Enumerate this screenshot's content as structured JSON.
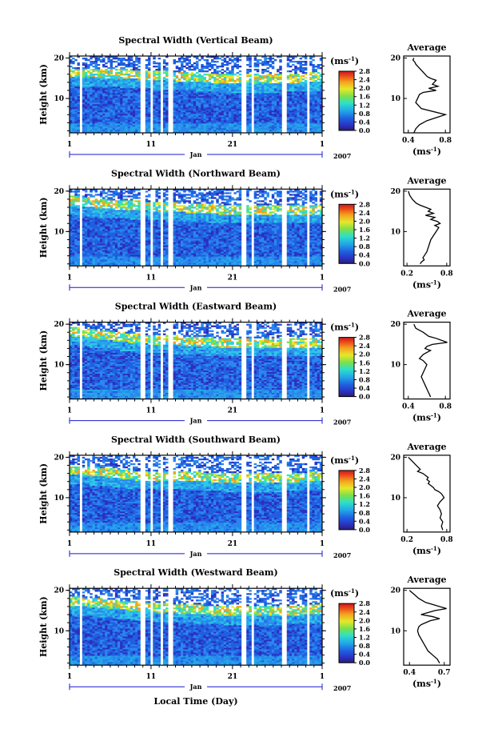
{
  "figure": {
    "xlabel": "Local Time (Day)",
    "month": "Jan",
    "year": "2007",
    "ylabel": "Height (km)",
    "unit": "(ms",
    "unit_sup": "-1",
    "unit_close": ")",
    "avg_title": "Average",
    "x_ticks": [
      "1",
      "11",
      "21",
      "1"
    ],
    "y_ticks": [
      "20",
      "10"
    ],
    "colorbar_ticks": [
      "0.0",
      "0.4",
      "0.8",
      "1.2",
      "1.6",
      "2.0",
      "2.4",
      "2.8"
    ]
  },
  "panels": [
    {
      "title": "Spectral Width (Vertical Beam)",
      "avg_ticks": [
        "0.4",
        "0.8"
      ]
    },
    {
      "title": "Spectral Width (Northward Beam)",
      "avg_ticks": [
        "0.2",
        "0.8"
      ]
    },
    {
      "title": "Spectral Width (Eastward Beam)",
      "avg_ticks": [
        "0.4",
        "0.8"
      ]
    },
    {
      "title": "Spectral Width (Southward Beam)",
      "avg_ticks": [
        "0.2",
        "0.8"
      ]
    },
    {
      "title": "Spectral Width (Westward Beam)",
      "avg_ticks": [
        "0.4",
        "0.7"
      ]
    }
  ],
  "chart_data": [
    {
      "type": "heatmap",
      "title": "Spectral Width (Vertical Beam)",
      "xlabel": "",
      "ylabel": "Height (km)",
      "x_range": [
        1,
        32
      ],
      "y_range": [
        1.5,
        20.5
      ],
      "color_range": [
        0.0,
        2.8
      ],
      "colorbar_label": "(ms-1)",
      "data_gaps_day": [
        [
          1.2,
          1.35
        ],
        [
          2.3,
          2.55
        ],
        [
          9.6,
          10.4
        ],
        [
          11.0,
          11.3
        ],
        [
          12.2,
          12.5
        ],
        [
          13.0,
          13.6
        ],
        [
          22.2,
          22.7
        ],
        [
          23.4,
          23.6
        ],
        [
          27.0,
          27.6
        ],
        [
          30.2,
          30.5
        ]
      ],
      "tropopause_km": [
        [
          1,
          16
        ],
        [
          5,
          16
        ],
        [
          10,
          15.5
        ],
        [
          16,
          15
        ],
        [
          21,
          14.5
        ],
        [
          26,
          14.5
        ],
        [
          32,
          15
        ]
      ]
    },
    {
      "type": "line",
      "title": "Average",
      "xlabel": "(ms-1)",
      "ylabel": "",
      "xlim": [
        0.35,
        0.85
      ],
      "ylim": [
        1.5,
        20.5
      ],
      "x": [
        0.46,
        0.45,
        0.47,
        0.48,
        0.5,
        0.52,
        0.54,
        0.56,
        0.58,
        0.6,
        0.62,
        0.66,
        0.7,
        0.66,
        0.72,
        0.62,
        0.7,
        0.56,
        0.52,
        0.5,
        0.48,
        0.54,
        0.8,
        0.6,
        0.52,
        0.48,
        0.46
      ],
      "y": [
        20.0,
        19.5,
        19.0,
        18.5,
        18.0,
        17.5,
        17.0,
        16.5,
        16.0,
        15.5,
        15.2,
        14.8,
        14.5,
        13.5,
        13.0,
        12.5,
        12.0,
        11.5,
        11.0,
        10.0,
        9.0,
        7.5,
        6.0,
        4.5,
        3.5,
        2.5,
        1.5
      ]
    },
    {
      "type": "heatmap",
      "title": "Spectral Width (Northward Beam)",
      "xlabel": "",
      "ylabel": "Height (km)",
      "x_range": [
        1,
        32
      ],
      "y_range": [
        1.5,
        20.5
      ],
      "color_range": [
        0.0,
        2.8
      ],
      "colorbar_label": "(ms-1)",
      "data_gaps_day": [
        [
          2.3,
          2.55
        ],
        [
          9.6,
          10.4
        ],
        [
          11.0,
          11.3
        ],
        [
          12.2,
          12.5
        ],
        [
          13.0,
          13.6
        ],
        [
          22.2,
          22.7
        ],
        [
          23.4,
          23.6
        ],
        [
          27.0,
          27.6
        ],
        [
          30.2,
          30.5
        ]
      ],
      "tropopause_km": [
        [
          1,
          17.5
        ],
        [
          5,
          16.5
        ],
        [
          10,
          16
        ],
        [
          16,
          15.5
        ],
        [
          21,
          15
        ],
        [
          26,
          15
        ],
        [
          32,
          15
        ]
      ]
    },
    {
      "type": "line",
      "title": "Average",
      "xlabel": "(ms-1)",
      "ylabel": "",
      "xlim": [
        0.15,
        0.85
      ],
      "ylim": [
        1.5,
        20.5
      ],
      "x": [
        0.22,
        0.24,
        0.28,
        0.34,
        0.4,
        0.48,
        0.56,
        0.52,
        0.6,
        0.48,
        0.62,
        0.56,
        0.66,
        0.7,
        0.62,
        0.68,
        0.64,
        0.6,
        0.56,
        0.54,
        0.52,
        0.5,
        0.46,
        0.44,
        0.46,
        0.42,
        0.4
      ],
      "y": [
        20.0,
        19.0,
        18.0,
        17.0,
        16.5,
        16.0,
        15.5,
        15.0,
        14.5,
        14.0,
        13.5,
        13.0,
        12.5,
        12.0,
        11.5,
        11.0,
        10.0,
        9.0,
        8.0,
        7.0,
        6.0,
        5.0,
        4.0,
        3.5,
        3.0,
        2.5,
        2.0
      ]
    },
    {
      "type": "heatmap",
      "title": "Spectral Width (Eastward Beam)",
      "xlabel": "",
      "ylabel": "Height (km)",
      "x_range": [
        1,
        32
      ],
      "y_range": [
        1.5,
        20.5
      ],
      "color_range": [
        0.0,
        2.8
      ],
      "colorbar_label": "(ms-1)",
      "data_gaps_day": [
        [
          2.3,
          2.55
        ],
        [
          9.6,
          10.4
        ],
        [
          11.0,
          11.3
        ],
        [
          12.2,
          12.5
        ],
        [
          13.0,
          13.6
        ],
        [
          22.2,
          22.7
        ],
        [
          23.4,
          23.6
        ],
        [
          27.0,
          27.6
        ],
        [
          30.2,
          30.5
        ]
      ],
      "tropopause_km": [
        [
          1,
          18
        ],
        [
          5,
          17
        ],
        [
          10,
          16
        ],
        [
          16,
          15.5
        ],
        [
          21,
          15
        ],
        [
          26,
          15
        ],
        [
          32,
          15
        ]
      ]
    },
    {
      "type": "line",
      "title": "Average",
      "xlabel": "(ms-1)",
      "ylabel": "",
      "xlim": [
        0.35,
        0.85
      ],
      "ylim": [
        1.5,
        20.5
      ],
      "x": [
        0.46,
        0.48,
        0.52,
        0.56,
        0.62,
        0.7,
        0.76,
        0.82,
        0.66,
        0.6,
        0.58,
        0.64,
        0.6,
        0.56,
        0.54,
        0.52,
        0.56,
        0.6,
        0.58,
        0.56,
        0.54,
        0.56,
        0.58,
        0.6,
        0.62,
        0.64
      ],
      "y": [
        20.0,
        19.0,
        18.5,
        18.0,
        17.0,
        16.5,
        16.0,
        15.5,
        15.0,
        14.5,
        14.0,
        13.5,
        13.0,
        12.5,
        12.0,
        11.5,
        11.0,
        10.0,
        9.0,
        8.0,
        7.0,
        6.0,
        5.0,
        4.0,
        3.0,
        2.0
      ]
    },
    {
      "type": "heatmap",
      "title": "Spectral Width (Southward Beam)",
      "xlabel": "",
      "ylabel": "Height (km)",
      "x_range": [
        1,
        32
      ],
      "y_range": [
        1.5,
        20.5
      ],
      "color_range": [
        0.0,
        2.8
      ],
      "colorbar_label": "(ms-1)",
      "data_gaps_day": [
        [
          2.3,
          2.55
        ],
        [
          9.6,
          10.4
        ],
        [
          11.0,
          11.3
        ],
        [
          12.2,
          12.5
        ],
        [
          13.0,
          13.6
        ],
        [
          22.2,
          22.7
        ],
        [
          23.4,
          23.6
        ],
        [
          27.0,
          27.6
        ],
        [
          30.2,
          30.5
        ]
      ],
      "tropopause_km": [
        [
          1,
          16.5
        ],
        [
          5,
          16
        ],
        [
          10,
          15
        ],
        [
          16,
          15
        ],
        [
          21,
          14.5
        ],
        [
          26,
          14.5
        ],
        [
          32,
          15
        ]
      ]
    },
    {
      "type": "line",
      "title": "Average",
      "xlabel": "(ms-1)",
      "ylabel": "",
      "xlim": [
        0.15,
        0.85
      ],
      "ylim": [
        1.5,
        20.5
      ],
      "x": [
        0.22,
        0.28,
        0.34,
        0.4,
        0.36,
        0.44,
        0.48,
        0.52,
        0.5,
        0.54,
        0.52,
        0.56,
        0.6,
        0.62,
        0.68,
        0.72,
        0.76,
        0.7,
        0.66,
        0.7,
        0.72,
        0.7,
        0.74,
        0.72,
        0.74
      ],
      "y": [
        20.0,
        19.0,
        18.0,
        17.0,
        16.5,
        16.0,
        15.5,
        15.0,
        14.5,
        14.0,
        13.5,
        13.0,
        12.5,
        12.0,
        11.5,
        11.0,
        10.0,
        9.0,
        8.0,
        7.0,
        6.0,
        5.0,
        4.0,
        3.0,
        2.0
      ]
    },
    {
      "type": "heatmap",
      "title": "Spectral Width (Westward Beam)",
      "xlabel": "Local Time (Day)",
      "ylabel": "Height (km)",
      "x_range": [
        1,
        32
      ],
      "y_range": [
        1.5,
        20.5
      ],
      "color_range": [
        0.0,
        2.8
      ],
      "colorbar_label": "(ms-1)",
      "data_gaps_day": [
        [
          1.3,
          1.4
        ],
        [
          2.3,
          2.55
        ],
        [
          9.6,
          10.4
        ],
        [
          11.0,
          11.3
        ],
        [
          12.2,
          12.5
        ],
        [
          13.0,
          13.6
        ],
        [
          22.2,
          22.7
        ],
        [
          23.4,
          23.6
        ],
        [
          27.0,
          27.6
        ],
        [
          30.2,
          30.5
        ]
      ],
      "tropopause_km": [
        [
          1,
          17
        ],
        [
          5,
          16.5
        ],
        [
          10,
          15.5
        ],
        [
          16,
          15
        ],
        [
          21,
          14.5
        ],
        [
          26,
          14.5
        ],
        [
          32,
          15
        ]
      ]
    },
    {
      "type": "line",
      "title": "Average",
      "xlabel": "(ms-1)",
      "ylabel": "",
      "xlim": [
        0.35,
        0.75
      ],
      "ylim": [
        1.5,
        20.5
      ],
      "x": [
        0.4,
        0.44,
        0.48,
        0.54,
        0.6,
        0.66,
        0.72,
        0.62,
        0.56,
        0.5,
        0.6,
        0.66,
        0.58,
        0.54,
        0.5,
        0.48,
        0.47,
        0.48,
        0.5,
        0.52,
        0.54,
        0.56,
        0.6,
        0.64,
        0.66
      ],
      "y": [
        20.0,
        19.0,
        18.0,
        17.0,
        16.5,
        16.0,
        15.5,
        15.0,
        14.5,
        14.0,
        13.5,
        13.0,
        12.5,
        12.0,
        11.5,
        11.0,
        10.0,
        9.0,
        8.0,
        7.0,
        6.0,
        5.0,
        4.0,
        3.0,
        2.0
      ]
    }
  ]
}
